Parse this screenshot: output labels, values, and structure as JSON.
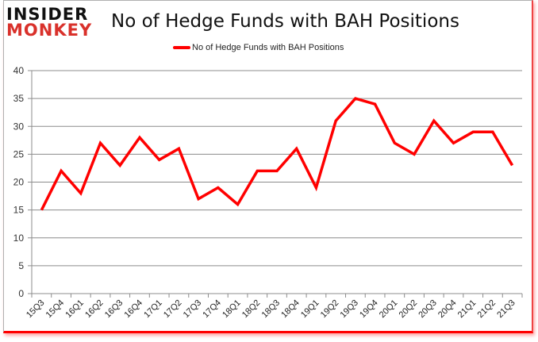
{
  "logo": {
    "line1": "INSIDER",
    "line2": "MONKEY"
  },
  "title": "No of Hedge Funds with BAH Positions",
  "legend": {
    "label": "No of Hedge Funds with BAH Positions",
    "color": "#ff0000"
  },
  "chart_data": {
    "type": "line",
    "title": "No of Hedge Funds with BAH Positions",
    "xlabel": "",
    "ylabel": "",
    "ylim": [
      0,
      40
    ],
    "yticks": [
      0,
      5,
      10,
      15,
      20,
      25,
      30,
      35,
      40
    ],
    "grid": true,
    "legend_position": "top",
    "categories": [
      "15Q3",
      "15Q4",
      "16Q1",
      "16Q2",
      "16Q3",
      "16Q4",
      "17Q1",
      "17Q2",
      "17Q3",
      "17Q4",
      "18Q1",
      "18Q2",
      "18Q3",
      "18Q4",
      "19Q1",
      "19Q2",
      "19Q3",
      "19Q4",
      "20Q1",
      "20Q2",
      "20Q3",
      "20Q4",
      "21Q1",
      "21Q2",
      "21Q3"
    ],
    "series": [
      {
        "name": "No of Hedge Funds with BAH Positions",
        "color": "#ff0000",
        "values": [
          15,
          22,
          18,
          27,
          23,
          28,
          24,
          26,
          17,
          19,
          16,
          22,
          22,
          26,
          19,
          31,
          35,
          34,
          27,
          25,
          31,
          27,
          29,
          29,
          23
        ]
      }
    ]
  }
}
